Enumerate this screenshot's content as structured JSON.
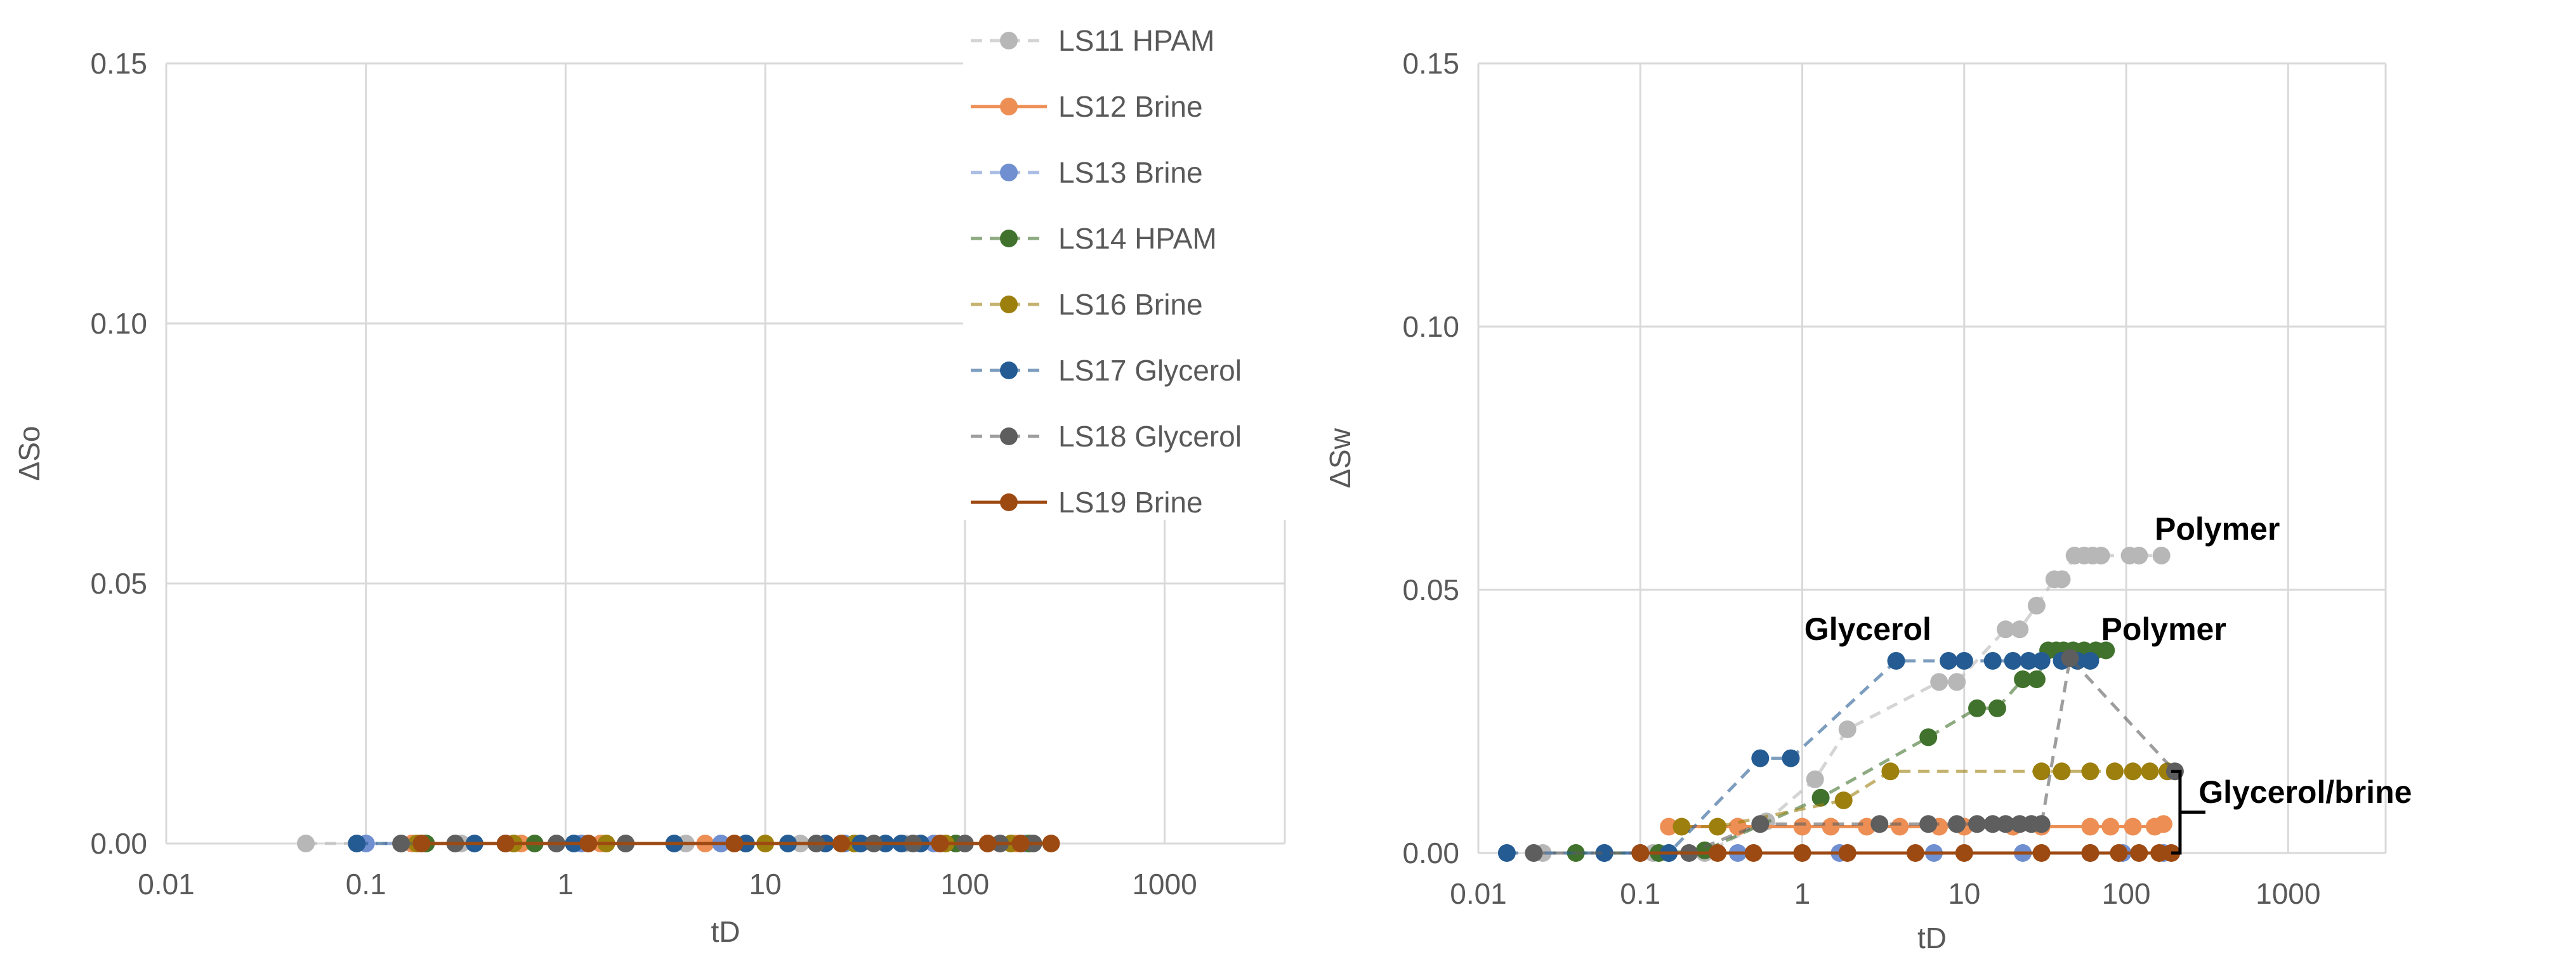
{
  "colors": {
    "LS11": "#b7b7b7",
    "LS12": "#ed8f55",
    "LS13": "#6f8fd0",
    "LS14": "#41722d",
    "LS16": "#9d7f0d",
    "LS17": "#245b93",
    "LS18": "#5e5e5e",
    "LS19": "#9d4a12",
    "grid": "#d9d9d9",
    "text": "#595959",
    "annotation": "#000000"
  },
  "legend": [
    {
      "key": "LS11",
      "label": "LS11 HPAM",
      "style": "dashed"
    },
    {
      "key": "LS12",
      "label": "LS12 Brine",
      "style": "solid"
    },
    {
      "key": "LS13",
      "label": "LS13 Brine",
      "style": "dashed"
    },
    {
      "key": "LS14",
      "label": "LS14 HPAM",
      "style": "dashed"
    },
    {
      "key": "LS16",
      "label": "LS16 Brine",
      "style": "dashed"
    },
    {
      "key": "LS17",
      "label": "LS17 Glycerol",
      "style": "dashed"
    },
    {
      "key": "LS18",
      "label": "LS18 Glycerol",
      "style": "dashed"
    },
    {
      "key": "LS19",
      "label": "LS19 Brine",
      "style": "solid"
    }
  ],
  "chart_data": [
    {
      "type": "scatter",
      "title": "",
      "xlabel": "tD",
      "ylabel": "ΔSo",
      "xscale": "log",
      "xlim": [
        0.01,
        4000
      ],
      "ylim": [
        0,
        0.15
      ],
      "xticks": [
        0.01,
        0.1,
        1,
        10,
        100,
        1000
      ],
      "xtick_labels": [
        "0.01",
        "0.1",
        "1",
        "10",
        "100",
        "1000"
      ],
      "yticks": [
        0,
        0.05,
        0.1,
        0.15
      ],
      "ytick_labels": [
        "0.00",
        "0.05",
        "0.10",
        "0.15"
      ],
      "grid": true,
      "legend_position": "top-right",
      "annotations": [],
      "series": [
        {
          "key": "LS11",
          "x": [
            0.05,
            0.3,
            0.9,
            4,
            15,
            50,
            150
          ],
          "y": [
            0,
            0,
            0,
            0,
            0,
            0,
            0
          ]
        },
        {
          "key": "LS12",
          "x": [
            0.17,
            0.6,
            1.5,
            5,
            20,
            60,
            180
          ],
          "y": [
            0,
            0,
            0,
            0,
            0,
            0,
            0
          ]
        },
        {
          "key": "LS13",
          "x": [
            0.1,
            0.5,
            1.2,
            6,
            25,
            70,
            200
          ],
          "y": [
            0,
            0,
            0,
            0,
            0,
            0,
            0
          ]
        },
        {
          "key": "LS14",
          "x": [
            0.2,
            0.7,
            2,
            8,
            30,
            90,
            210
          ],
          "y": [
            0,
            0,
            0,
            0,
            0,
            0,
            0
          ]
        },
        {
          "key": "LS16",
          "x": [
            0.18,
            0.55,
            1.6,
            10,
            28,
            80,
            170
          ],
          "y": [
            0,
            0,
            0,
            0,
            0,
            0,
            0
          ]
        },
        {
          "key": "LS17",
          "x": [
            0.09,
            0.35,
            1.1,
            3.5,
            8,
            13,
            20,
            30,
            40,
            48,
            60
          ],
          "y": [
            0,
            0,
            0,
            0,
            0,
            0,
            0,
            0,
            0,
            0,
            0
          ]
        },
        {
          "key": "LS18",
          "x": [
            0.15,
            0.28,
            0.9,
            2,
            18,
            35,
            55,
            100,
            150,
            220
          ],
          "y": [
            0,
            0,
            0,
            0,
            0,
            0,
            0,
            0,
            0,
            0
          ]
        },
        {
          "key": "LS19",
          "x": [
            0.19,
            0.5,
            1.3,
            7,
            24,
            75,
            130,
            190,
            270
          ],
          "y": [
            0,
            0,
            0,
            0,
            0,
            0,
            0,
            0,
            0
          ]
        }
      ]
    },
    {
      "type": "scatter",
      "title": "",
      "xlabel": "tD",
      "ylabel": "ΔSw",
      "xscale": "log",
      "xlim": [
        0.01,
        4000
      ],
      "ylim": [
        0,
        0.15
      ],
      "xticks": [
        0.01,
        0.1,
        1,
        10,
        100,
        1000
      ],
      "xtick_labels": [
        "0.01",
        "0.1",
        "1",
        "10",
        "100",
        "1000"
      ],
      "yticks": [
        0,
        0.05,
        0.1,
        0.15
      ],
      "yticks_labels_note": "",
      "ytick_labels": [
        "0.00",
        "0.05",
        "0.10",
        "0.15"
      ],
      "grid": true,
      "legend_position": "none",
      "annotations": [
        {
          "text": "Polymer",
          "x": 150,
          "y": 0.0595
        },
        {
          "text": "Polymer",
          "x": 70,
          "y": 0.0405
        },
        {
          "text": "Glycerol",
          "x": 1.03,
          "y": 0.0405
        },
        {
          "text": "Glycerol/brine",
          "x": 280,
          "y": 0.0095
        }
      ],
      "series": [
        {
          "key": "LS11",
          "x": [
            0.025,
            0.06,
            0.12,
            0.25,
            0.6,
            1.2,
            1.9,
            7,
            9,
            18,
            22,
            28,
            36,
            40,
            48,
            55,
            62,
            70,
            105,
            120,
            165
          ],
          "y": [
            0,
            0,
            0,
            0,
            0.006,
            0.014,
            0.0235,
            0.0325,
            0.0325,
            0.0425,
            0.0425,
            0.047,
            0.052,
            0.052,
            0.0565,
            0.0565,
            0.0565,
            0.0565,
            0.0565,
            0.0565,
            0.0565
          ]
        },
        {
          "key": "LS12",
          "x": [
            0.15,
            0.4,
            1,
            1.5,
            2.5,
            4,
            7,
            10,
            20,
            30,
            60,
            80,
            110,
            150,
            170
          ],
          "y": [
            0.005,
            0.005,
            0.005,
            0.005,
            0.005,
            0.005,
            0.005,
            0.005,
            0.005,
            0.005,
            0.005,
            0.005,
            0.005,
            0.005,
            0.0055
          ]
        },
        {
          "key": "LS13",
          "x": [
            0.06,
            0.15,
            0.4,
            1.7,
            6.5,
            23,
            60,
            95,
            170
          ],
          "y": [
            0,
            0,
            0,
            0,
            0,
            0,
            0,
            0,
            0
          ]
        },
        {
          "key": "LS14",
          "x": [
            0.04,
            0.13,
            0.25,
            1.3,
            6,
            12,
            16,
            23,
            28,
            33,
            37,
            41,
            47,
            55,
            65,
            75
          ],
          "y": [
            0,
            0,
            0.0005,
            0.0105,
            0.022,
            0.0275,
            0.0275,
            0.033,
            0.033,
            0.0385,
            0.0385,
            0.0385,
            0.0385,
            0.0385,
            0.0385,
            0.0385
          ]
        },
        {
          "key": "LS16",
          "x": [
            0.18,
            0.3,
            1.8,
            3.5,
            30,
            40,
            60,
            85,
            110,
            140,
            180
          ],
          "y": [
            0.005,
            0.005,
            0.01,
            0.0155,
            0.0155,
            0.0155,
            0.0155,
            0.0155,
            0.0155,
            0.0155,
            0.0155
          ]
        },
        {
          "key": "LS17",
          "x": [
            0.015,
            0.06,
            0.15,
            0.55,
            0.85,
            3.8,
            8,
            10,
            15,
            20,
            25,
            30,
            40,
            50,
            60
          ],
          "y": [
            0,
            0,
            0,
            0.018,
            0.018,
            0.0365,
            0.0365,
            0.0365,
            0.0365,
            0.0365,
            0.0365,
            0.0365,
            0.0365,
            0.0365,
            0.0365
          ]
        },
        {
          "key": "LS18",
          "x": [
            0.022,
            0.1,
            0.2,
            0.55,
            3,
            6,
            9,
            12,
            15,
            18,
            22,
            26,
            30,
            45,
            200
          ],
          "y": [
            0,
            0,
            0,
            0.0055,
            0.0055,
            0.0055,
            0.0055,
            0.0055,
            0.0055,
            0.0055,
            0.0055,
            0.0055,
            0.0055,
            0.037,
            0.0155
          ]
        },
        {
          "key": "LS19",
          "x": [
            0.1,
            0.3,
            0.5,
            1,
            1.9,
            5,
            10,
            30,
            60,
            90,
            120,
            160,
            190
          ],
          "y": [
            0,
            0,
            0,
            0,
            0,
            0,
            0,
            0,
            0,
            0,
            0,
            0,
            0
          ]
        }
      ]
    }
  ]
}
